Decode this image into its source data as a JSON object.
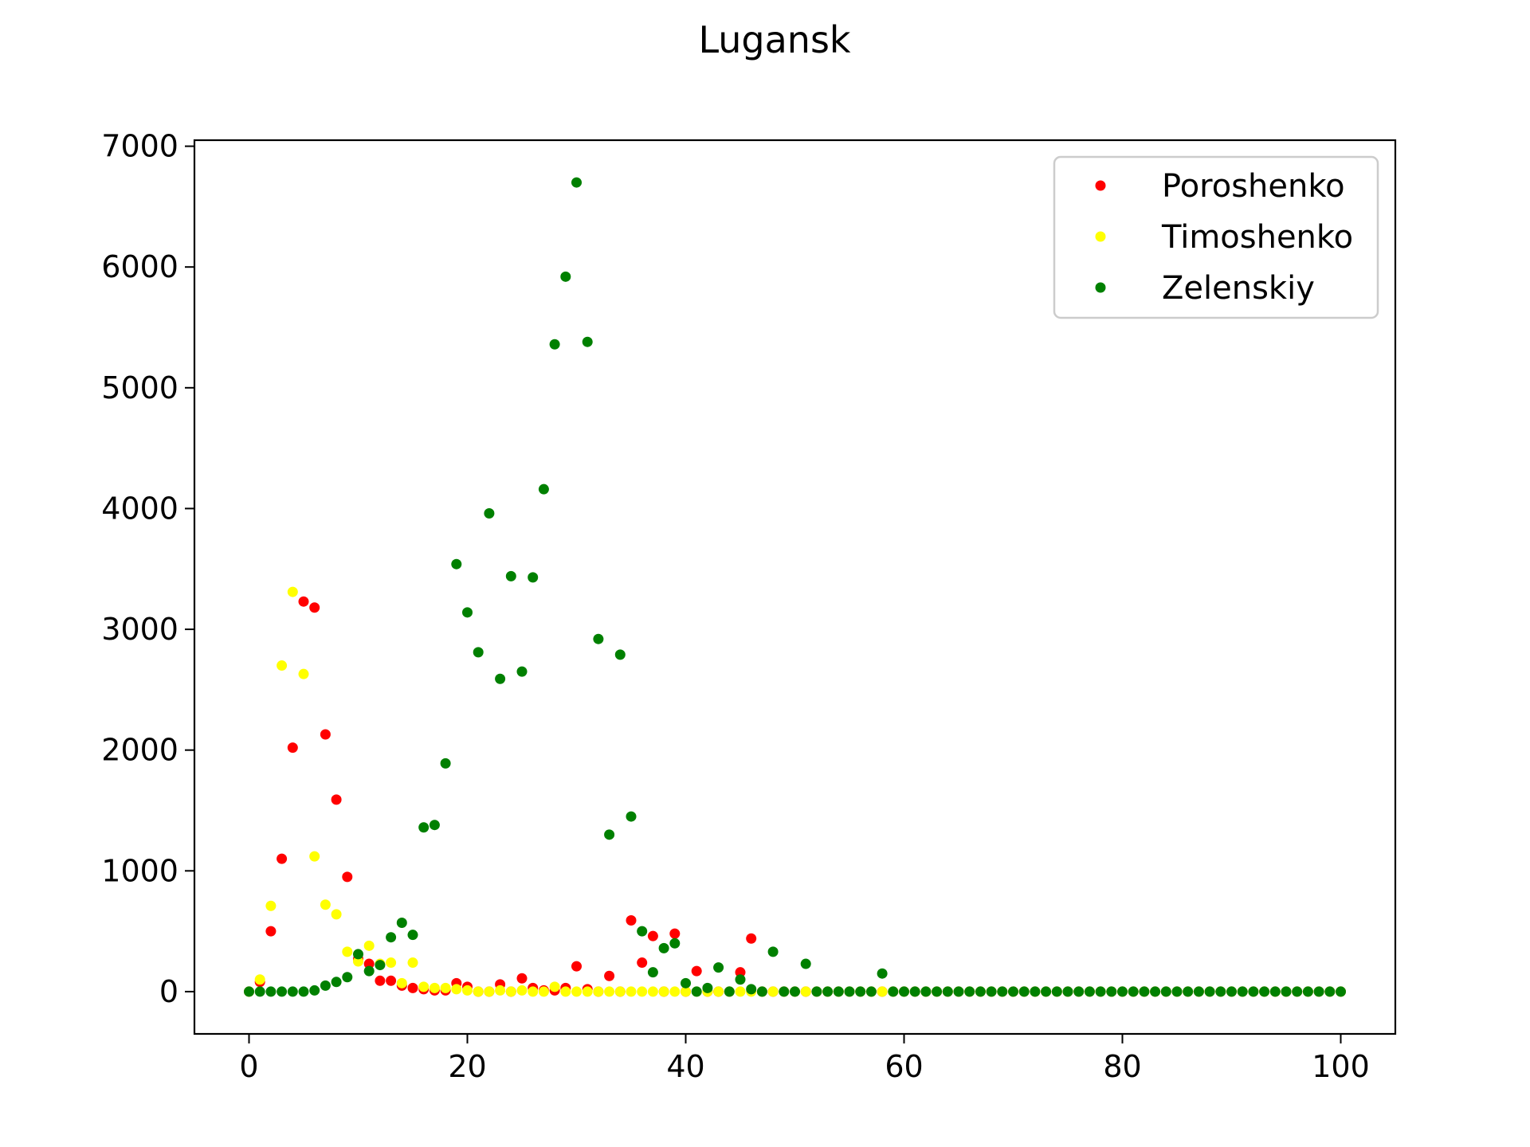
{
  "chart_data": {
    "type": "scatter",
    "title": "Lugansk",
    "xlabel": "",
    "ylabel": "",
    "xlim": [
      -5,
      105
    ],
    "ylim": [
      -350,
      7050
    ],
    "xticks": [
      0,
      20,
      40,
      60,
      80,
      100
    ],
    "yticks": [
      0,
      1000,
      2000,
      3000,
      4000,
      5000,
      6000,
      7000
    ],
    "grid": false,
    "legend_position": "top-right",
    "series": [
      {
        "name": "Poroshenko",
        "color": "#ff0000",
        "points": [
          [
            0,
            0
          ],
          [
            1,
            80
          ],
          [
            2,
            500
          ],
          [
            3,
            1100
          ],
          [
            4,
            2020
          ],
          [
            5,
            3230
          ],
          [
            6,
            3180
          ],
          [
            7,
            2130
          ],
          [
            8,
            1590
          ],
          [
            9,
            950
          ],
          [
            10,
            270
          ],
          [
            11,
            230
          ],
          [
            12,
            90
          ],
          [
            13,
            90
          ],
          [
            14,
            50
          ],
          [
            15,
            30
          ],
          [
            16,
            20
          ],
          [
            17,
            10
          ],
          [
            18,
            10
          ],
          [
            19,
            70
          ],
          [
            20,
            40
          ],
          [
            21,
            0
          ],
          [
            22,
            0
          ],
          [
            23,
            60
          ],
          [
            24,
            0
          ],
          [
            25,
            110
          ],
          [
            26,
            30
          ],
          [
            27,
            10
          ],
          [
            28,
            10
          ],
          [
            29,
            30
          ],
          [
            30,
            210
          ],
          [
            31,
            20
          ],
          [
            32,
            0
          ],
          [
            33,
            130
          ],
          [
            34,
            0
          ],
          [
            35,
            590
          ],
          [
            36,
            240
          ],
          [
            37,
            460
          ],
          [
            38,
            0
          ],
          [
            39,
            480
          ],
          [
            40,
            0
          ],
          [
            41,
            170
          ],
          [
            42,
            0
          ],
          [
            43,
            0
          ],
          [
            44,
            0
          ],
          [
            45,
            160
          ],
          [
            46,
            440
          ],
          [
            47,
            0
          ],
          [
            48,
            0
          ],
          [
            49,
            0
          ],
          [
            50,
            0
          ],
          [
            51,
            0
          ],
          [
            52,
            0
          ],
          [
            53,
            0
          ],
          [
            54,
            0
          ],
          [
            55,
            0
          ],
          [
            56,
            0
          ],
          [
            57,
            0
          ],
          [
            58,
            0
          ],
          [
            59,
            0
          ],
          [
            60,
            0
          ],
          [
            61,
            0
          ],
          [
            62,
            0
          ],
          [
            63,
            0
          ],
          [
            64,
            0
          ],
          [
            65,
            0
          ],
          [
            66,
            0
          ],
          [
            67,
            0
          ],
          [
            68,
            0
          ],
          [
            69,
            0
          ],
          [
            70,
            0
          ],
          [
            71,
            0
          ],
          [
            72,
            0
          ],
          [
            73,
            0
          ],
          [
            74,
            0
          ],
          [
            75,
            0
          ],
          [
            76,
            0
          ],
          [
            77,
            0
          ],
          [
            78,
            0
          ],
          [
            79,
            0
          ],
          [
            80,
            0
          ],
          [
            81,
            0
          ],
          [
            82,
            0
          ],
          [
            83,
            0
          ],
          [
            84,
            0
          ],
          [
            85,
            0
          ],
          [
            86,
            0
          ],
          [
            87,
            0
          ],
          [
            88,
            0
          ],
          [
            89,
            0
          ],
          [
            90,
            0
          ],
          [
            91,
            0
          ],
          [
            92,
            0
          ],
          [
            93,
            0
          ],
          [
            94,
            0
          ],
          [
            95,
            0
          ],
          [
            96,
            0
          ],
          [
            97,
            0
          ],
          [
            98,
            0
          ],
          [
            99,
            0
          ],
          [
            100,
            0
          ]
        ]
      },
      {
        "name": "Timoshenko",
        "color": "#ffff00",
        "points": [
          [
            0,
            0
          ],
          [
            1,
            100
          ],
          [
            2,
            710
          ],
          [
            3,
            2700
          ],
          [
            4,
            3310
          ],
          [
            5,
            2630
          ],
          [
            6,
            1120
          ],
          [
            7,
            720
          ],
          [
            8,
            640
          ],
          [
            9,
            330
          ],
          [
            10,
            250
          ],
          [
            11,
            380
          ],
          [
            12,
            230
          ],
          [
            13,
            240
          ],
          [
            14,
            70
          ],
          [
            15,
            240
          ],
          [
            16,
            40
          ],
          [
            17,
            30
          ],
          [
            18,
            30
          ],
          [
            19,
            20
          ],
          [
            20,
            10
          ],
          [
            21,
            0
          ],
          [
            22,
            0
          ],
          [
            23,
            10
          ],
          [
            24,
            0
          ],
          [
            25,
            10
          ],
          [
            26,
            0
          ],
          [
            27,
            0
          ],
          [
            28,
            40
          ],
          [
            29,
            0
          ],
          [
            30,
            0
          ],
          [
            31,
            0
          ],
          [
            32,
            0
          ],
          [
            33,
            0
          ],
          [
            34,
            0
          ],
          [
            35,
            0
          ],
          [
            36,
            0
          ],
          [
            37,
            0
          ],
          [
            38,
            0
          ],
          [
            39,
            0
          ],
          [
            40,
            0
          ],
          [
            41,
            0
          ],
          [
            42,
            0
          ],
          [
            43,
            0
          ],
          [
            44,
            0
          ],
          [
            45,
            0
          ],
          [
            46,
            0
          ],
          [
            47,
            0
          ],
          [
            48,
            0
          ],
          [
            49,
            0
          ],
          [
            50,
            0
          ],
          [
            51,
            0
          ],
          [
            52,
            0
          ],
          [
            53,
            0
          ],
          [
            54,
            0
          ],
          [
            55,
            0
          ],
          [
            56,
            0
          ],
          [
            57,
            0
          ],
          [
            58,
            0
          ],
          [
            59,
            0
          ],
          [
            60,
            0
          ],
          [
            61,
            0
          ],
          [
            62,
            0
          ],
          [
            63,
            0
          ],
          [
            64,
            0
          ],
          [
            65,
            0
          ],
          [
            66,
            0
          ],
          [
            67,
            0
          ],
          [
            68,
            0
          ],
          [
            69,
            0
          ],
          [
            70,
            0
          ],
          [
            71,
            0
          ],
          [
            72,
            0
          ],
          [
            73,
            0
          ],
          [
            74,
            0
          ],
          [
            75,
            0
          ],
          [
            76,
            0
          ],
          [
            77,
            0
          ],
          [
            78,
            0
          ],
          [
            79,
            0
          ],
          [
            80,
            0
          ],
          [
            81,
            0
          ],
          [
            82,
            0
          ],
          [
            83,
            0
          ],
          [
            84,
            0
          ],
          [
            85,
            0
          ],
          [
            86,
            0
          ],
          [
            87,
            0
          ],
          [
            88,
            0
          ],
          [
            89,
            0
          ],
          [
            90,
            0
          ],
          [
            91,
            0
          ],
          [
            92,
            0
          ],
          [
            93,
            0
          ],
          [
            94,
            0
          ],
          [
            95,
            0
          ],
          [
            96,
            0
          ],
          [
            97,
            0
          ],
          [
            98,
            0
          ],
          [
            99,
            0
          ],
          [
            100,
            0
          ]
        ]
      },
      {
        "name": "Zelenskiy",
        "color": "#008000",
        "points": [
          [
            0,
            0
          ],
          [
            1,
            0
          ],
          [
            2,
            0
          ],
          [
            3,
            0
          ],
          [
            4,
            0
          ],
          [
            5,
            0
          ],
          [
            6,
            10
          ],
          [
            7,
            50
          ],
          [
            8,
            80
          ],
          [
            9,
            120
          ],
          [
            10,
            310
          ],
          [
            11,
            170
          ],
          [
            12,
            220
          ],
          [
            13,
            450
          ],
          [
            14,
            570
          ],
          [
            15,
            470
          ],
          [
            16,
            1360
          ],
          [
            17,
            1380
          ],
          [
            18,
            1890
          ],
          [
            19,
            3540
          ],
          [
            20,
            3140
          ],
          [
            21,
            2810
          ],
          [
            22,
            3960
          ],
          [
            23,
            2590
          ],
          [
            24,
            3440
          ],
          [
            25,
            2650
          ],
          [
            26,
            3430
          ],
          [
            27,
            4160
          ],
          [
            28,
            5360
          ],
          [
            29,
            5920
          ],
          [
            30,
            6700
          ],
          [
            31,
            5380
          ],
          [
            32,
            2920
          ],
          [
            33,
            1300
          ],
          [
            34,
            2790
          ],
          [
            35,
            1450
          ],
          [
            36,
            500
          ],
          [
            37,
            160
          ],
          [
            38,
            360
          ],
          [
            39,
            400
          ],
          [
            40,
            70
          ],
          [
            41,
            0
          ],
          [
            42,
            30
          ],
          [
            43,
            200
          ],
          [
            44,
            0
          ],
          [
            45,
            100
          ],
          [
            46,
            20
          ],
          [
            47,
            0
          ],
          [
            48,
            330
          ],
          [
            49,
            0
          ],
          [
            50,
            0
          ],
          [
            51,
            230
          ],
          [
            52,
            0
          ],
          [
            53,
            0
          ],
          [
            54,
            0
          ],
          [
            55,
            0
          ],
          [
            56,
            0
          ],
          [
            57,
            0
          ],
          [
            58,
            150
          ],
          [
            59,
            0
          ],
          [
            60,
            0
          ],
          [
            61,
            0
          ],
          [
            62,
            0
          ],
          [
            63,
            0
          ],
          [
            64,
            0
          ],
          [
            65,
            0
          ],
          [
            66,
            0
          ],
          [
            67,
            0
          ],
          [
            68,
            0
          ],
          [
            69,
            0
          ],
          [
            70,
            0
          ],
          [
            71,
            0
          ],
          [
            72,
            0
          ],
          [
            73,
            0
          ],
          [
            74,
            0
          ],
          [
            75,
            0
          ],
          [
            76,
            0
          ],
          [
            77,
            0
          ],
          [
            78,
            0
          ],
          [
            79,
            0
          ],
          [
            80,
            0
          ],
          [
            81,
            0
          ],
          [
            82,
            0
          ],
          [
            83,
            0
          ],
          [
            84,
            0
          ],
          [
            85,
            0
          ],
          [
            86,
            0
          ],
          [
            87,
            0
          ],
          [
            88,
            0
          ],
          [
            89,
            0
          ],
          [
            90,
            0
          ],
          [
            91,
            0
          ],
          [
            92,
            0
          ],
          [
            93,
            0
          ],
          [
            94,
            0
          ],
          [
            95,
            0
          ],
          [
            96,
            0
          ],
          [
            97,
            0
          ],
          [
            98,
            0
          ],
          [
            99,
            0
          ],
          [
            100,
            0
          ]
        ]
      }
    ]
  }
}
